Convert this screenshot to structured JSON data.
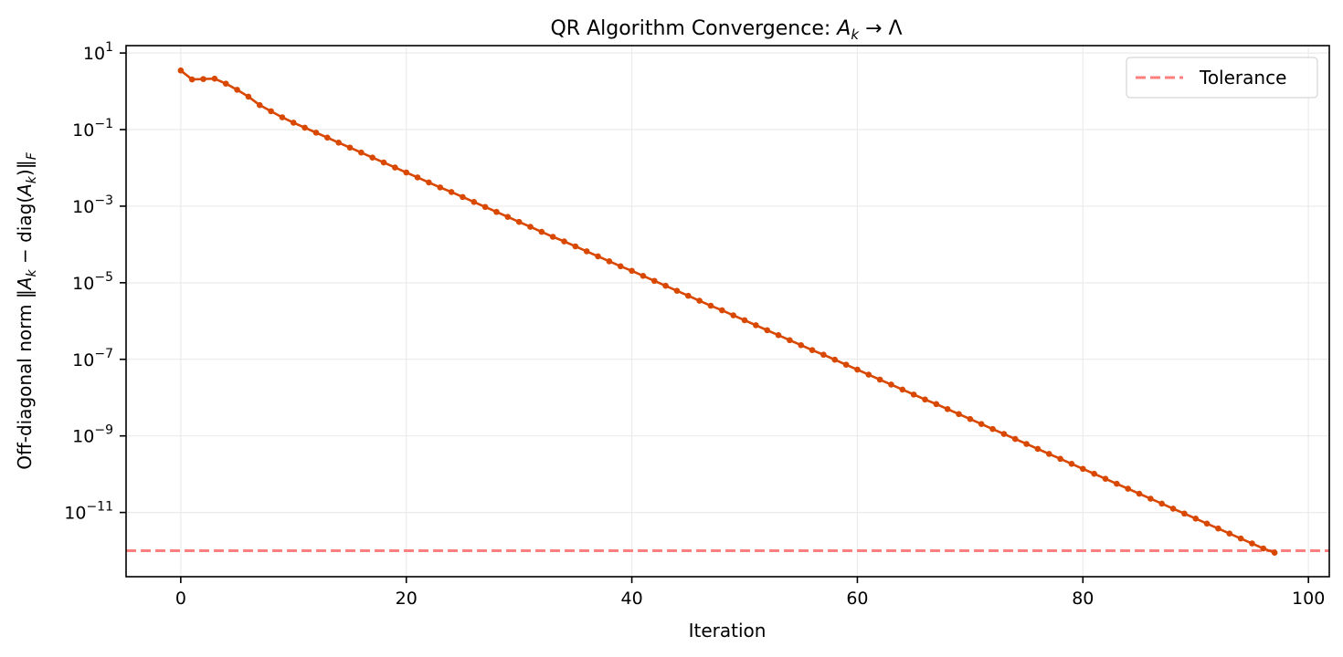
{
  "chart_data": {
    "type": "line",
    "title": "QR Algorithm Convergence: A_k → Λ",
    "title_parts": {
      "prefix": "QR Algorithm Convergence: ",
      "var": "A",
      "sub": "k",
      "arrow": " → ",
      "target": "Λ"
    },
    "xlabel": "Iteration",
    "ylabel": "Off-diagonal norm ‖A_k − diag(A_k)‖_F",
    "ylabel_parts": {
      "prefix": "Off-diagonal norm ‖",
      "a1": "A",
      "s1": "k",
      "mid": " − diag(",
      "a2": "A",
      "s2": "k",
      "end": ")‖",
      "sub_f": "F"
    },
    "xscale": "linear",
    "yscale": "log",
    "xlim": [
      -4.85,
      101.85
    ],
    "ylim": [
      2.1e-13,
      15.6
    ],
    "xticks": [
      0,
      20,
      40,
      60,
      80,
      100
    ],
    "xtick_labels": [
      "0",
      "20",
      "40",
      "60",
      "80",
      "100"
    ],
    "yticks_exp": [
      1,
      -1,
      -3,
      -5,
      -7,
      -9,
      -11
    ],
    "ytick_base": "10",
    "grid": true,
    "legend": {
      "position": "upper right",
      "entries": [
        "Tolerance"
      ]
    },
    "series": [
      {
        "name": "Off-diagonal norm",
        "color": "#d94801",
        "marker": "circle",
        "x_start": 0,
        "x_end": 97,
        "log10_values": [
          0.544,
          0.31,
          0.32,
          0.33,
          0.2,
          0.04,
          -0.14,
          -0.36,
          -0.52,
          -0.68,
          -0.82,
          -0.95,
          -1.08,
          -1.21,
          -1.34,
          -1.47,
          -1.6,
          -1.73,
          -1.86,
          -1.99,
          -2.12,
          -2.25,
          -2.38,
          -2.51,
          -2.63,
          -2.76,
          -2.89,
          -3.02,
          -3.15,
          -3.28,
          -3.41,
          -3.54,
          -3.67,
          -3.8,
          -3.92,
          -4.05,
          -4.18,
          -4.31,
          -4.44,
          -4.57,
          -4.69,
          -4.82,
          -4.95,
          -5.08,
          -5.21,
          -5.34,
          -5.47,
          -5.6,
          -5.72,
          -5.85,
          -5.98,
          -6.11,
          -6.24,
          -6.37,
          -6.5,
          -6.63,
          -6.76,
          -6.88,
          -7.01,
          -7.14,
          -7.27,
          -7.4,
          -7.53,
          -7.66,
          -7.79,
          -7.92,
          -8.05,
          -8.17,
          -8.3,
          -8.43,
          -8.56,
          -8.69,
          -8.82,
          -8.95,
          -9.08,
          -9.21,
          -9.34,
          -9.47,
          -9.6,
          -9.73,
          -9.86,
          -9.99,
          -10.12,
          -10.25,
          -10.38,
          -10.51,
          -10.64,
          -10.77,
          -10.9,
          -11.03,
          -11.16,
          -11.29,
          -11.42,
          -11.55,
          -11.68,
          -11.81,
          -11.94,
          -12.05
        ]
      },
      {
        "name": "Tolerance",
        "type": "hline",
        "value": 1e-12,
        "color": "#ff7f7f",
        "linestyle": "dashed"
      }
    ]
  },
  "legend": {
    "tolerance_label": "Tolerance"
  },
  "axes": {
    "xlabel": "Iteration"
  },
  "colors": {
    "line": "#d94801",
    "tolerance": "#ff7f7f",
    "grid": "#ebebeb",
    "axis": "#000000"
  }
}
